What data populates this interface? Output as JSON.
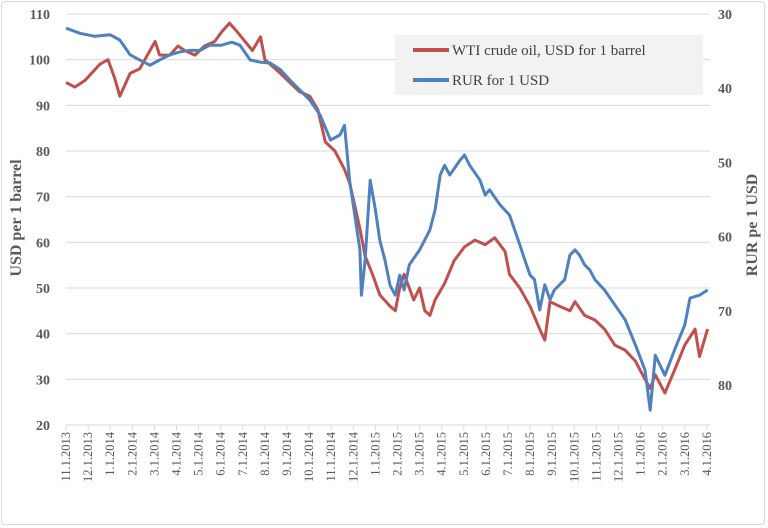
{
  "chart_data": {
    "type": "line",
    "title": "",
    "xlabel": "",
    "ylabel": "USD per 1 barrel",
    "ylabel_right": "RUR pe 1 USD",
    "ylim": [
      20,
      110
    ],
    "yticks": [
      "110",
      "100",
      "90",
      "80",
      "70",
      "60",
      "50",
      "40",
      "30",
      "20"
    ],
    "ylim_right": [
      30,
      85.4
    ],
    "y_right_inverted": true,
    "yticks_right": [
      "30",
      "40",
      "50",
      "60",
      "70",
      "80"
    ],
    "xticks": [
      "11.1.2013",
      "12.1.2013",
      "1.1.2014",
      "2.1.2014",
      "3.1.2014",
      "4.1.2014",
      "5.1.2014",
      "6.1.2014",
      "7.1.2014",
      "8.1.2014",
      "9.1.2014",
      "10.1.2014",
      "11.1.2014",
      "12.1.2014",
      "1.1.2015",
      "2.1.2015",
      "3.1.2015",
      "4.1.2015",
      "5.1.2015",
      "6.1.2015",
      "7.1.2015",
      "8.1.2015",
      "9.1.2015",
      "10.1.2015",
      "11.1.2015",
      "12.1.2015",
      "1.1.2016",
      "2.1.2016",
      "3.1.2016",
      "4.1.2016"
    ],
    "grid": "horizontal",
    "legend_position": "top-right",
    "series": [
      {
        "name": "WTI crude oil, USD for 1 barrel",
        "axis": "left",
        "color": "#c0504d",
        "x": [
          "2013-11-01",
          "2013-11-13",
          "2013-11-27",
          "2013-12-17",
          "2013-12-28",
          "2014-01-07",
          "2014-01-14",
          "2014-01-28",
          "2014-02-11",
          "2014-02-25",
          "2014-03-02",
          "2014-03-08",
          "2014-03-22",
          "2014-04-03",
          "2014-04-12",
          "2014-04-26",
          "2014-05-09",
          "2014-05-23",
          "2014-06-02",
          "2014-06-13",
          "2014-06-24",
          "2014-07-04",
          "2014-07-14",
          "2014-07-25",
          "2014-08-01",
          "2014-08-08",
          "2014-08-22",
          "2014-09-05",
          "2014-09-18",
          "2014-10-02",
          "2014-10-13",
          "2014-10-23",
          "2014-11-06",
          "2014-11-19",
          "2014-11-26",
          "2014-12-03",
          "2014-12-10",
          "2014-12-17",
          "2014-12-27",
          "2015-01-07",
          "2015-01-21",
          "2015-01-28",
          "2015-02-04",
          "2015-02-10",
          "2015-02-17",
          "2015-02-23",
          "2015-03-01",
          "2015-03-08",
          "2015-03-15",
          "2015-03-22",
          "2015-04-05",
          "2015-04-18",
          "2015-05-02",
          "2015-05-16",
          "2015-05-30",
          "2015-06-13",
          "2015-06-27",
          "2015-07-03",
          "2015-07-17",
          "2015-08-01",
          "2015-08-14",
          "2015-08-21",
          "2015-08-28",
          "2015-09-11",
          "2015-09-25",
          "2015-10-02",
          "2015-10-15",
          "2015-10-29",
          "2015-11-12",
          "2015-11-26",
          "2015-12-10",
          "2015-12-24",
          "2016-01-07",
          "2016-01-14",
          "2016-01-21",
          "2016-02-04",
          "2016-02-17",
          "2016-03-01",
          "2016-03-15",
          "2016-03-21",
          "2016-04-02"
        ],
        "values": [
          95,
          94,
          95.5,
          99,
          100,
          96,
          92,
          97,
          98,
          102,
          104,
          101,
          101,
          103,
          102,
          101,
          103,
          104,
          106,
          108,
          106,
          104,
          102,
          105,
          100,
          99,
          97,
          95,
          93,
          92,
          89,
          82,
          80,
          76,
          73,
          68,
          63,
          57,
          53,
          48.5,
          46,
          45,
          50,
          53,
          50,
          47.4,
          50,
          45,
          44,
          47.4,
          51,
          56,
          59,
          60.5,
          59.5,
          61,
          58,
          53,
          50,
          46,
          41,
          38.6,
          47,
          46,
          45,
          47,
          44,
          43,
          41,
          37.5,
          36.4,
          34,
          30,
          28,
          31,
          27,
          32,
          37.5,
          41,
          35,
          41
        ]
      },
      {
        "name": "RUR for 1 USD",
        "axis": "right",
        "color": "#4f81bd",
        "x": [
          "2013-11-01",
          "2013-11-20",
          "2013-12-10",
          "2013-12-31",
          "2014-01-14",
          "2014-01-28",
          "2014-02-11",
          "2014-02-25",
          "2014-03-08",
          "2014-03-22",
          "2014-04-06",
          "2014-04-19",
          "2014-05-03",
          "2014-05-16",
          "2014-06-02",
          "2014-06-16",
          "2014-06-27",
          "2014-07-11",
          "2014-07-25",
          "2014-08-08",
          "2014-08-22",
          "2014-09-05",
          "2014-09-18",
          "2014-10-02",
          "2014-10-16",
          "2014-10-30",
          "2014-11-13",
          "2014-11-19",
          "2014-11-26",
          "2014-12-03",
          "2014-12-10",
          "2014-12-12",
          "2014-12-17",
          "2014-12-24",
          "2014-12-31",
          "2015-01-07",
          "2015-01-14",
          "2015-01-21",
          "2015-01-28",
          "2015-02-04",
          "2015-02-10",
          "2015-02-17",
          "2015-03-01",
          "2015-03-15",
          "2015-03-22",
          "2015-03-29",
          "2015-04-05",
          "2015-04-12",
          "2015-04-26",
          "2015-05-02",
          "2015-05-09",
          "2015-05-23",
          "2015-05-30",
          "2015-06-06",
          "2015-06-20",
          "2015-07-03",
          "2015-07-17",
          "2015-07-24",
          "2015-08-01",
          "2015-08-07",
          "2015-08-14",
          "2015-08-21",
          "2015-08-28",
          "2015-09-04",
          "2015-09-18",
          "2015-09-25",
          "2015-10-02",
          "2015-10-08",
          "2015-10-15",
          "2015-10-22",
          "2015-10-29",
          "2015-11-12",
          "2015-11-26",
          "2015-12-10",
          "2015-12-24",
          "2016-01-07",
          "2016-01-14",
          "2016-01-21",
          "2016-02-04",
          "2016-02-17",
          "2016-03-01",
          "2016-03-08",
          "2016-03-21",
          "2016-04-02"
        ],
        "values": [
          31.9,
          32.6,
          33,
          32.8,
          33.5,
          35.5,
          36.2,
          36.9,
          36.2,
          35.5,
          35.1,
          34.9,
          34.9,
          34.2,
          34.2,
          33.8,
          34.2,
          36.2,
          36.5,
          36.6,
          37.5,
          38.9,
          40.2,
          41.6,
          43.6,
          47,
          46.3,
          45,
          52.4,
          57.1,
          61.8,
          67.9,
          63.2,
          52.4,
          56.4,
          60.5,
          63.2,
          66.6,
          67.9,
          65.2,
          67.2,
          63.8,
          61.8,
          59.1,
          56.4,
          51.7,
          50.4,
          51.7,
          49.7,
          49,
          50.4,
          52.4,
          54.4,
          53.7,
          55.7,
          57.1,
          61.1,
          63.2,
          65.2,
          65.8,
          69.9,
          66.5,
          68.5,
          67.2,
          65.8,
          62.5,
          61.8,
          62.5,
          63.8,
          64.5,
          65.8,
          67.2,
          69.2,
          71.2,
          74.6,
          78,
          83.4,
          76,
          78.7,
          75.3,
          71.9,
          68.3,
          67.9,
          67.2
        ]
      }
    ]
  }
}
